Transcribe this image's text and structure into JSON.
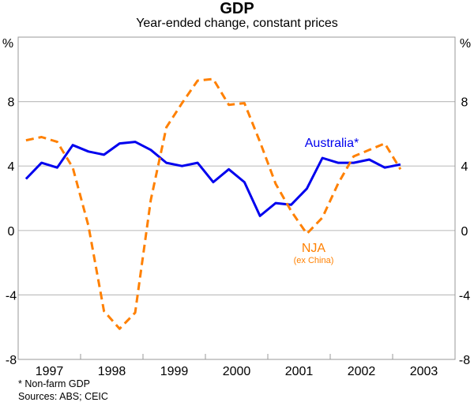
{
  "chart_data": {
    "type": "line",
    "title": "GDP",
    "subtitle": "Year-ended change, constant prices",
    "ylabel_left": "%",
    "ylabel_right": "%",
    "ylim": [
      -8,
      12
    ],
    "yticks": [
      -8,
      -4,
      0,
      4,
      8
    ],
    "xlim": [
      1997,
      2004
    ],
    "xtick_labels": [
      "1997",
      "1998",
      "1999",
      "2000",
      "2001",
      "2002",
      "2003"
    ],
    "grid": true,
    "x_frequency": "quarterly",
    "x_start": "1997 Q1",
    "series": [
      {
        "name": "Australia*",
        "color": "#0000ee",
        "style": "solid",
        "values": [
          3.2,
          4.2,
          3.9,
          5.3,
          4.9,
          4.7,
          5.4,
          5.5,
          5.0,
          4.2,
          4.0,
          4.2,
          3.0,
          3.8,
          3.0,
          0.9,
          1.7,
          1.6,
          2.6,
          4.5,
          4.2,
          4.2,
          4.4,
          3.9,
          4.1
        ]
      },
      {
        "name": "NJA",
        "sublabel": "(ex China)",
        "color": "#ff8000",
        "style": "dashed",
        "values": [
          5.6,
          5.8,
          5.5,
          3.9,
          0.3,
          -5.0,
          -6.1,
          -5.1,
          1.9,
          6.4,
          7.9,
          9.3,
          9.4,
          7.8,
          7.9,
          5.5,
          2.9,
          1.2,
          -0.2,
          0.8,
          2.9,
          4.6,
          5.0,
          5.4,
          3.8
        ]
      }
    ],
    "footnote": "* Non-farm GDP",
    "sources": "Sources: ABS; CEIC"
  }
}
